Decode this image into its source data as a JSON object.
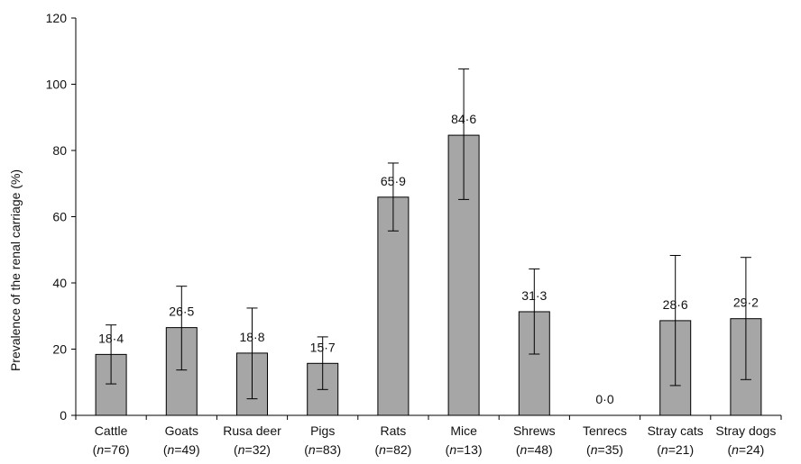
{
  "chart_data": {
    "type": "bar",
    "ylabel": "Prevalence of the renal carriage (%)",
    "ylim": [
      0,
      120
    ],
    "yticks": [
      0,
      20,
      40,
      60,
      80,
      100,
      120
    ],
    "categories": [
      "Cattle",
      "Goats",
      "Rusa deer",
      "Pigs",
      "Rats",
      "Mice",
      "Shrews",
      "Tenrecs",
      "Stray cats",
      "Stray dogs"
    ],
    "n_values": [
      "76",
      "49",
      "32",
      "83",
      "82",
      "13",
      "48",
      "35",
      "21",
      "24"
    ],
    "values": [
      18.4,
      26.5,
      18.8,
      15.7,
      65.9,
      84.6,
      31.3,
      0.0,
      28.6,
      29.2
    ],
    "value_labels": [
      "18·4",
      "26·5",
      "18·8",
      "15·7",
      "65·9",
      "84·6",
      "31·3",
      "0·0",
      "28·6",
      "29·2"
    ],
    "error_low": [
      9.5,
      13.7,
      5.0,
      7.8,
      55.7,
      65.2,
      18.5,
      0.0,
      9.0,
      10.8
    ],
    "error_high": [
      27.3,
      39.0,
      32.4,
      23.7,
      76.2,
      104.6,
      44.2,
      0.0,
      48.3,
      47.7
    ],
    "grid": false
  },
  "colors": {
    "bar_fill": "#a6a6a6",
    "bar_stroke": "#000000",
    "axis": "#000000"
  }
}
